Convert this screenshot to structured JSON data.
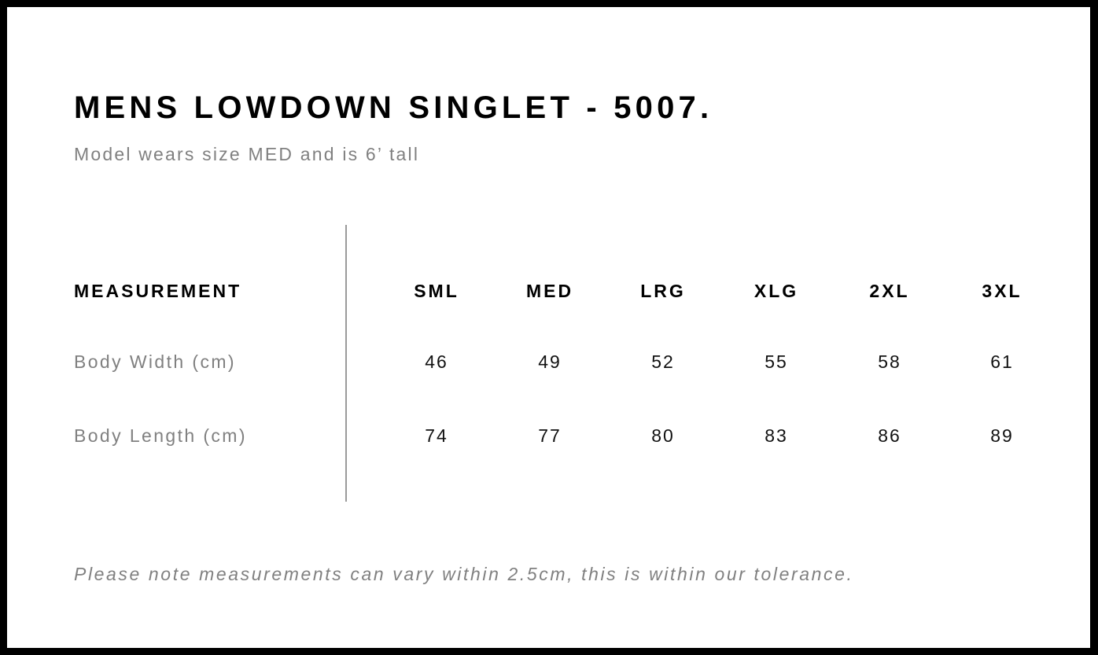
{
  "title": "MENS LOWDOWN SINGLET - 5007.",
  "subtitle": "Model wears size MED and is 6’ tall",
  "table": {
    "header_label": "MEASUREMENT",
    "sizes": [
      "SML",
      "MED",
      "LRG",
      "XLG",
      "2XL",
      "3XL"
    ],
    "rows": [
      {
        "label": "Body Width (cm)",
        "values": [
          "46",
          "49",
          "52",
          "55",
          "58",
          "61"
        ]
      },
      {
        "label": "Body Length (cm)",
        "values": [
          "74",
          "77",
          "80",
          "83",
          "86",
          "89"
        ]
      }
    ]
  },
  "note": "Please note measurements can vary within 2.5cm, this is within our tolerance."
}
